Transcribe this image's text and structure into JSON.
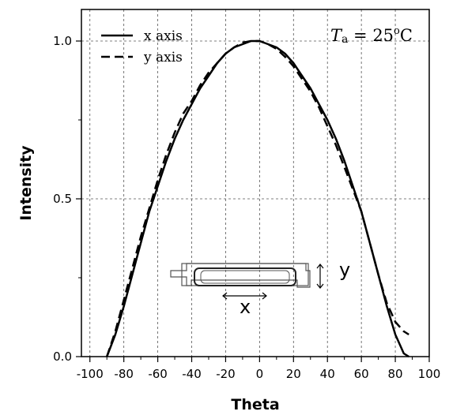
{
  "chart_data": {
    "type": "line",
    "xlabel": "Theta",
    "ylabel": "Intensity",
    "xlim": [
      -105,
      100
    ],
    "ylim": [
      0.0,
      1.1
    ],
    "x_ticks": [
      "-100",
      "-80",
      "-60",
      "-40",
      "-20",
      "0",
      "20",
      "40",
      "60",
      "80",
      "100"
    ],
    "y_ticks": [
      "0.0",
      "0.5",
      "1.0"
    ],
    "grid": true,
    "legend_position": "top-left",
    "annotation": {
      "t": "T",
      "sub": "a",
      "eq": " = 25",
      "deg": "o",
      "unit": "C"
    },
    "inset_labels": {
      "x": "x",
      "y": "y"
    },
    "series": [
      {
        "name": "x axis",
        "line_style": "solid",
        "x": [
          -90,
          -85,
          -80,
          -75,
          -70,
          -65,
          -60,
          -55,
          -50,
          -45,
          -40,
          -35,
          -30,
          -25,
          -20,
          -15,
          -10,
          -5,
          0,
          5,
          10,
          15,
          20,
          25,
          30,
          35,
          40,
          45,
          50,
          55,
          60,
          65,
          70,
          75,
          80,
          85,
          88
        ],
        "y": [
          0.0,
          0.07,
          0.16,
          0.26,
          0.36,
          0.46,
          0.54,
          0.62,
          0.69,
          0.75,
          0.8,
          0.85,
          0.89,
          0.93,
          0.96,
          0.98,
          0.99,
          1.0,
          1.0,
          0.99,
          0.98,
          0.96,
          0.93,
          0.89,
          0.85,
          0.8,
          0.75,
          0.69,
          0.62,
          0.54,
          0.46,
          0.36,
          0.26,
          0.16,
          0.07,
          0.01,
          0.0
        ]
      },
      {
        "name": "y axis",
        "line_style": "dashed",
        "x": [
          -90,
          -85,
          -80,
          -75,
          -70,
          -65,
          -60,
          -55,
          -50,
          -45,
          -40,
          -35,
          -30,
          -25,
          -20,
          -15,
          -10,
          -5,
          0,
          5,
          10,
          15,
          20,
          25,
          30,
          35,
          40,
          45,
          50,
          55,
          60,
          65,
          70,
          75,
          80,
          85,
          88
        ],
        "y": [
          0.0,
          0.08,
          0.18,
          0.28,
          0.38,
          0.47,
          0.56,
          0.64,
          0.71,
          0.77,
          0.81,
          0.86,
          0.9,
          0.93,
          0.96,
          0.98,
          0.995,
          1.0,
          1.0,
          0.99,
          0.975,
          0.95,
          0.92,
          0.88,
          0.84,
          0.79,
          0.73,
          0.67,
          0.6,
          0.53,
          0.46,
          0.36,
          0.26,
          0.17,
          0.11,
          0.08,
          0.07
        ]
      }
    ]
  }
}
